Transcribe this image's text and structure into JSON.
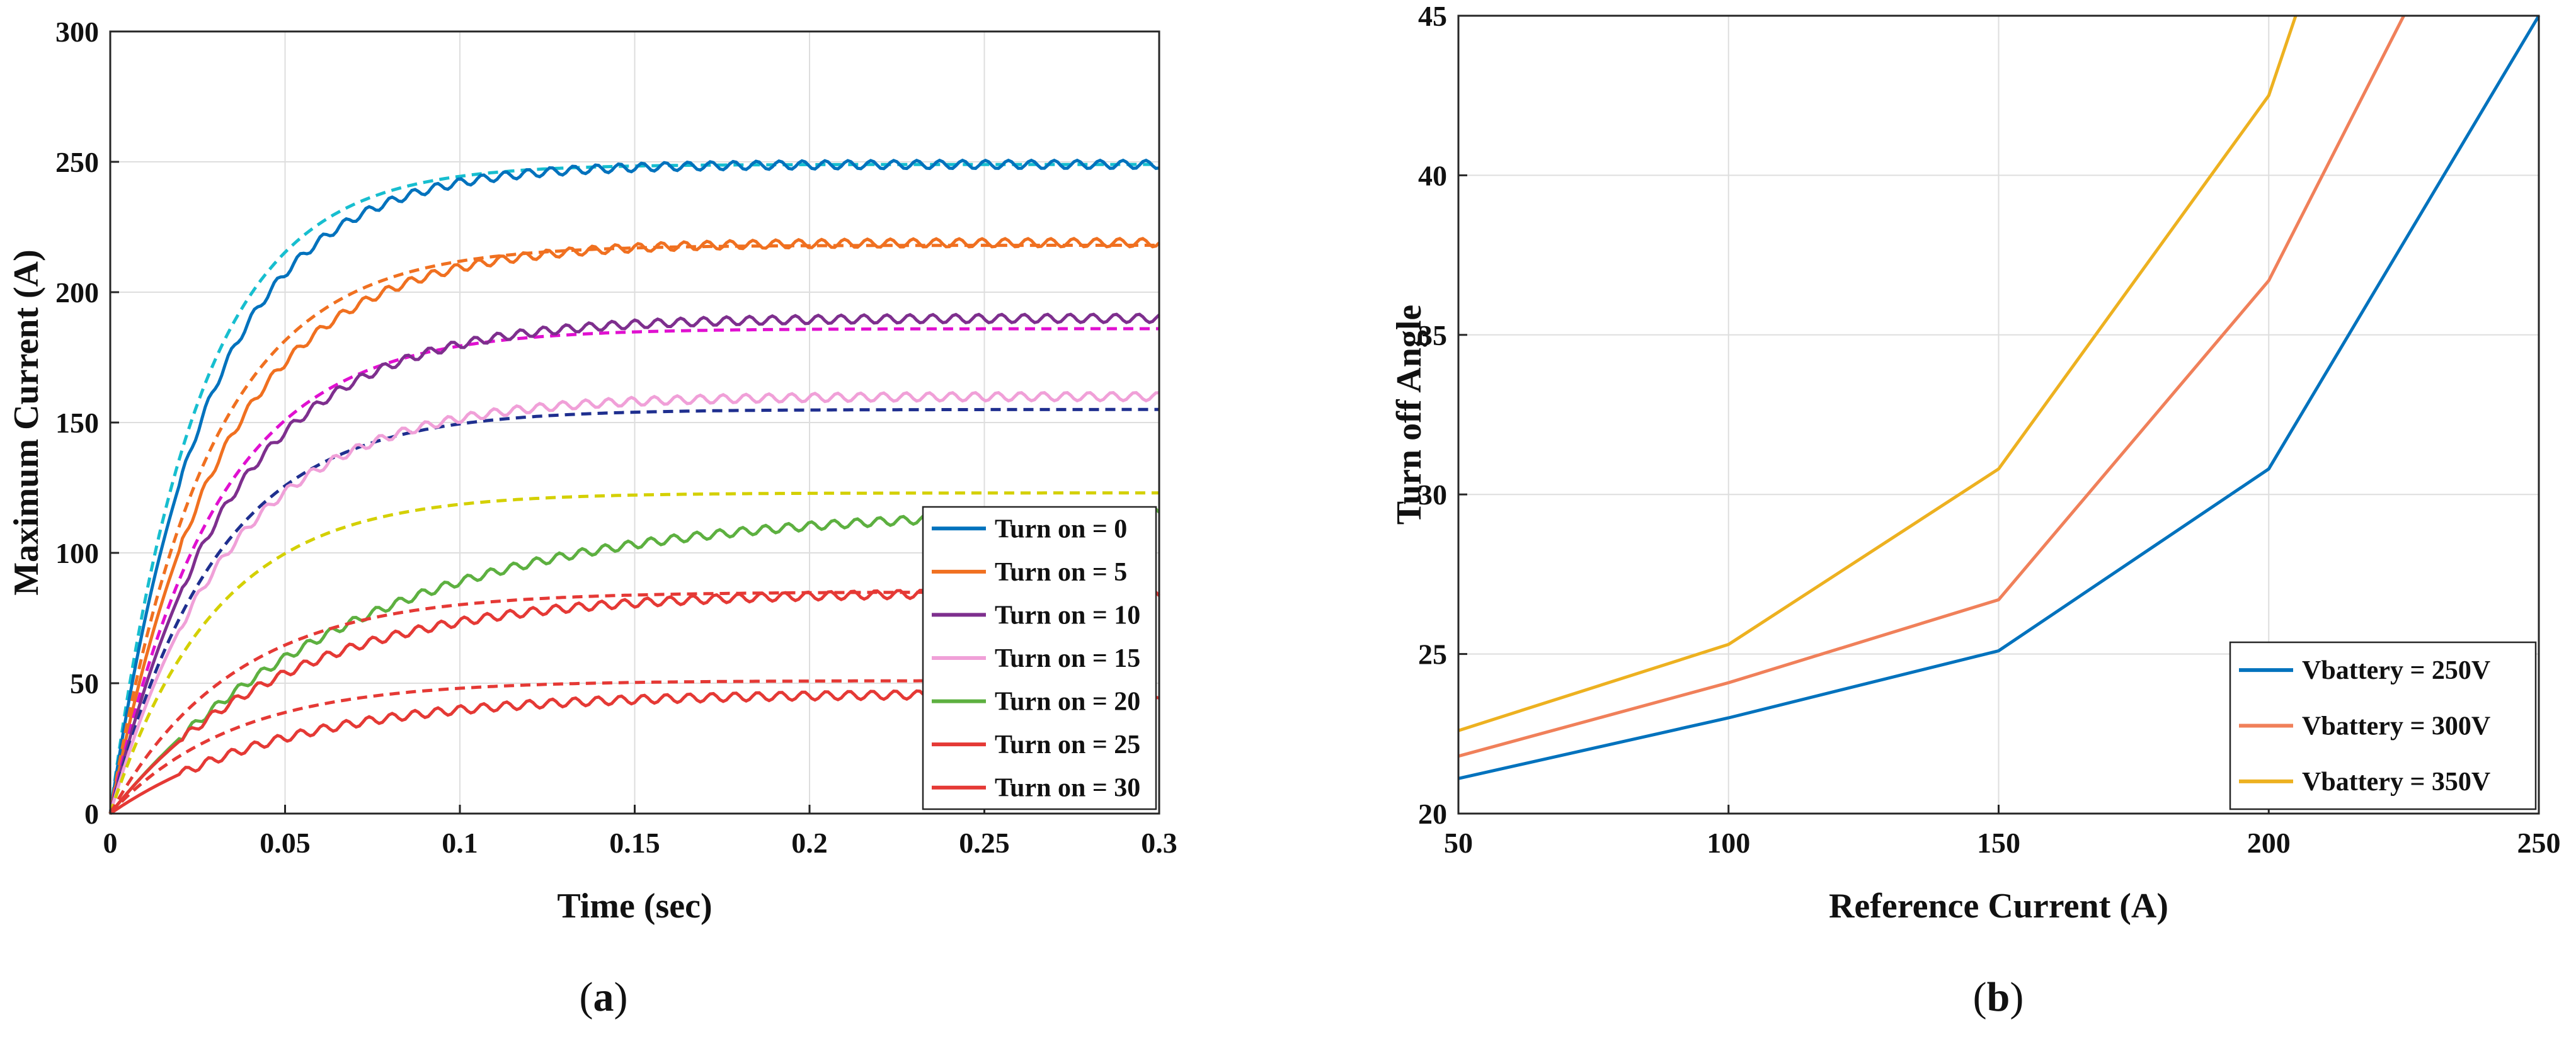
{
  "chart_data": [
    {
      "type": "line",
      "panel": "a",
      "caption": "(a)",
      "caption_letter": "a",
      "title": "",
      "xlabel": "Time (sec)",
      "ylabel": "Maximum Current (A)",
      "xlim": [
        0,
        0.3
      ],
      "ylim": [
        0,
        300
      ],
      "xticks": [
        0,
        0.05,
        0.1,
        0.15,
        0.2,
        0.25,
        0.3
      ],
      "xtick_labels": [
        "0",
        "0.05",
        "0.1",
        "0.15",
        "0.2",
        "0.25",
        "0.3"
      ],
      "yticks": [
        0,
        50,
        100,
        150,
        200,
        250,
        300
      ],
      "ytick_labels": [
        "0",
        "50",
        "100",
        "150",
        "200",
        "250",
        "300"
      ],
      "grid": true,
      "legend_position": "lower-right",
      "series": [
        {
          "name": "Turn on = 0",
          "color": "#0072BD",
          "final": 249,
          "tau": 0.028,
          "dashed_final": 249,
          "dashed_color": "#17BECF",
          "dashed_tau": 0.025
        },
        {
          "name": "Turn on = 5",
          "color": "#F07020",
          "final": 219,
          "tau": 0.032,
          "dashed_final": 218,
          "dashed_color": "#F07020",
          "dashed_tau": 0.028
        },
        {
          "name": "Turn on = 10",
          "color": "#7E2F8E",
          "final": 190,
          "tau": 0.034,
          "dashed_final": 186,
          "dashed_color": "#E010D0",
          "dashed_tau": 0.03
        },
        {
          "name": "Turn on = 15",
          "color": "#F0A0D8",
          "final": 160,
          "tau": 0.034,
          "dashed_final": 155,
          "dashed_color": "#1F2F8F",
          "dashed_tau": 0.03
        },
        {
          "name": "Turn on = 20",
          "color": "#5DB040",
          "final": 117,
          "tau": 0.07,
          "dashed_final": 123,
          "dashed_color": "#D4D000",
          "dashed_tau": 0.03
        },
        {
          "name": "Turn on = 25",
          "color": "#E53935",
          "final": 85,
          "tau": 0.05,
          "dashed_final": 85,
          "dashed_color": "#E53935",
          "dashed_tau": 0.035
        },
        {
          "name": "Turn on = 30",
          "color": "#E53935",
          "final": 46,
          "tau": 0.05,
          "dashed_final": 51,
          "dashed_color": "#E53935",
          "dashed_tau": 0.035
        }
      ]
    },
    {
      "type": "line",
      "panel": "b",
      "caption": "(b)",
      "caption_letter": "b",
      "title": "",
      "xlabel": "Reference Current (A)",
      "ylabel": "Turn off Angle",
      "xlim": [
        50,
        250
      ],
      "ylim": [
        20,
        45
      ],
      "xticks": [
        50,
        100,
        150,
        200,
        250
      ],
      "xtick_labels": [
        "50",
        "100",
        "150",
        "200",
        "250"
      ],
      "yticks": [
        20,
        25,
        30,
        35,
        40,
        45
      ],
      "ytick_labels": [
        "20",
        "25",
        "30",
        "35",
        "40",
        "45"
      ],
      "grid": true,
      "legend_position": "lower-right",
      "series": [
        {
          "name": "Vbattery = 250V",
          "color": "#0072BD",
          "x": [
            50,
            100,
            150,
            200,
            250
          ],
          "y": [
            21.1,
            23.0,
            25.1,
            30.8,
            45.0
          ]
        },
        {
          "name": "Vbattery = 300V",
          "color": "#F0805A",
          "x": [
            50,
            100,
            150,
            200,
            225
          ],
          "y": [
            21.8,
            24.1,
            26.7,
            36.7,
            45.0
          ]
        },
        {
          "name": "Vbattery = 350V",
          "color": "#EDB120",
          "x": [
            50,
            100,
            150,
            200,
            205
          ],
          "y": [
            22.6,
            25.3,
            30.8,
            42.5,
            45.0
          ]
        }
      ]
    }
  ]
}
